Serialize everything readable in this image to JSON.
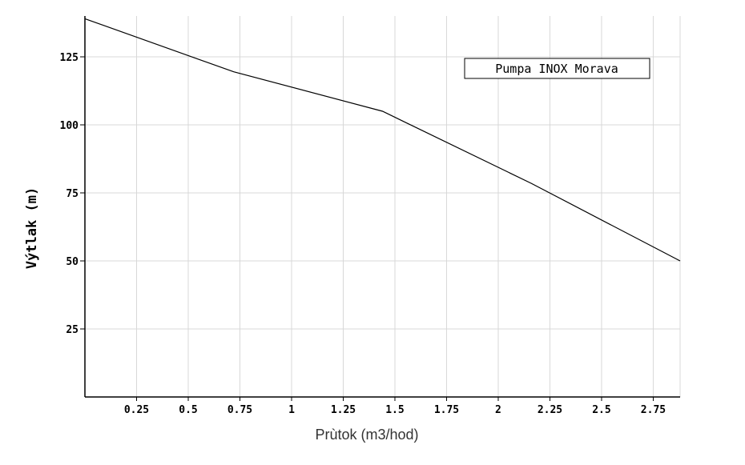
{
  "chart_data": {
    "type": "line",
    "xlabel": "Prùtok (m3/hod)",
    "ylabel": "Výtlak (m)",
    "xlim": [
      0,
      2.88
    ],
    "ylim": [
      0,
      140
    ],
    "x_ticks": [
      0.25,
      0.5,
      0.75,
      1,
      1.25,
      1.5,
      1.75,
      2,
      2.25,
      2.5,
      2.75
    ],
    "x_tick_labels": [
      "0.25",
      "0.5",
      "0.75",
      "1",
      "1.25",
      "1.5",
      "1.75",
      "2",
      "2.25",
      "2.5",
      "2.75"
    ],
    "y_ticks": [
      25,
      50,
      75,
      100,
      125
    ],
    "y_tick_labels": [
      "25",
      "50",
      "75",
      "100",
      "125"
    ],
    "grid": true,
    "legend_position": "top-right",
    "series": [
      {
        "name": "Pumpa INOX Morava",
        "color": "#000000",
        "x": [
          0,
          0.72,
          1.44,
          2.16,
          2.88
        ],
        "y": [
          139,
          119.5,
          105,
          78.5,
          50
        ]
      }
    ]
  }
}
